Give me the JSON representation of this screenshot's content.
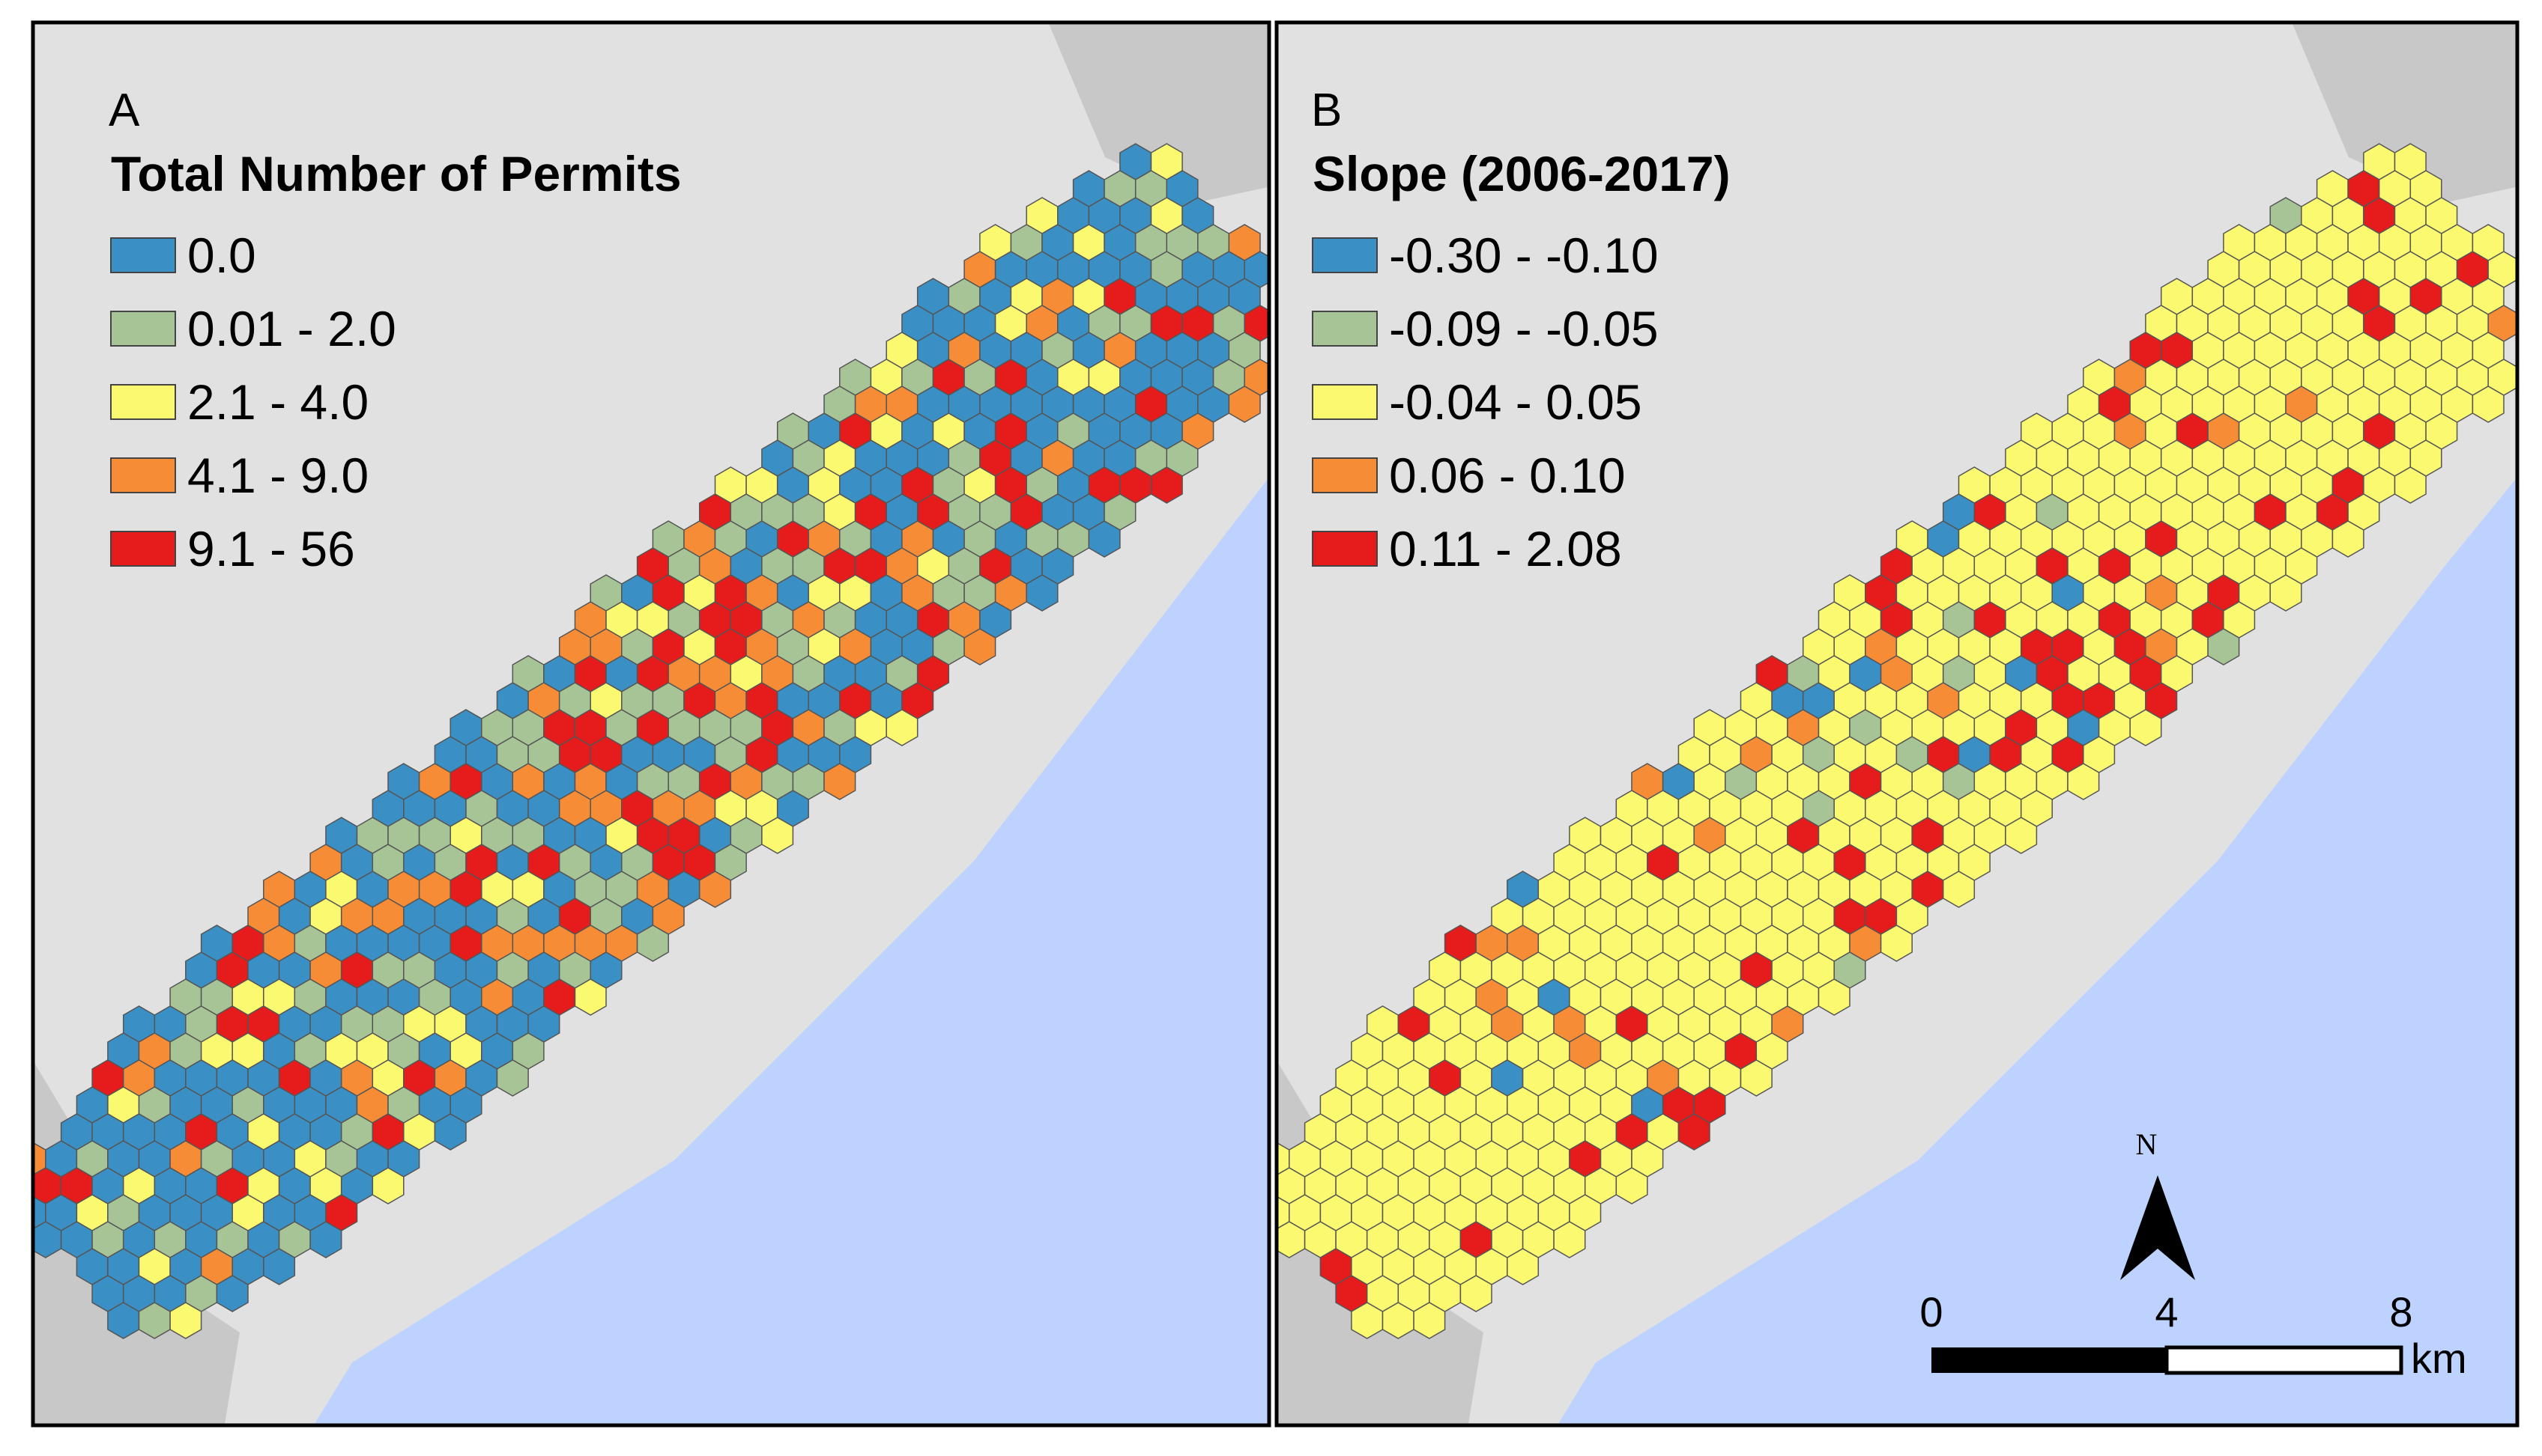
{
  "panels": [
    {
      "label": "A",
      "legend_title": "Total Number of Permits",
      "classes": [
        {
          "label": "0.0",
          "color": "#3a8fc4"
        },
        {
          "label": "0.01 - 2.0",
          "color": "#a7c496"
        },
        {
          "label": "2.1 - 4.0",
          "color": "#fbf970"
        },
        {
          "label": "4.1 - 9.0",
          "color": "#f68d36"
        },
        {
          "label": "9.1 - 56",
          "color": "#e61b1b"
        }
      ]
    },
    {
      "label": "B",
      "legend_title": "Slope (2006-2017)",
      "classes": [
        {
          "label": "-0.30 - -0.10",
          "color": "#3a8fc4"
        },
        {
          "label": "-0.09 - -0.05",
          "color": "#a7c496"
        },
        {
          "label": "-0.04 - 0.05",
          "color": "#fbf970"
        },
        {
          "label": "0.06 - 0.10",
          "color": "#f68d36"
        },
        {
          "label": "0.11 - 2.08",
          "color": "#e61b1b"
        }
      ]
    }
  ],
  "scale_bar": {
    "ticks": [
      "0",
      "4",
      "8"
    ],
    "unit": "km"
  },
  "north_arrow": {
    "label": "N"
  },
  "colors": {
    "land": "#e1e1e1",
    "dark_land": "#c8c8c8",
    "water": "#bed2ff",
    "hex_outline": "#555555"
  }
}
